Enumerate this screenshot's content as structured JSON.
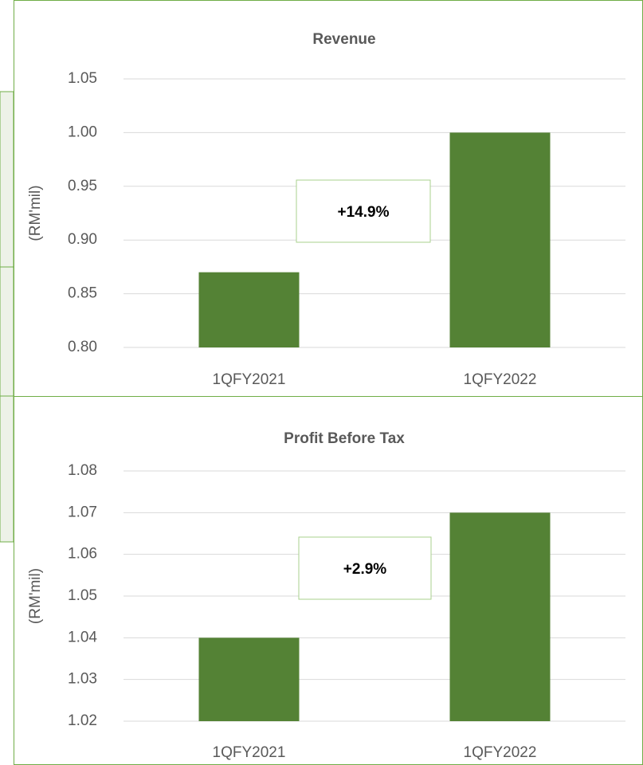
{
  "chart_data": [
    {
      "type": "bar",
      "title": "Revenue",
      "y_label": "(RM'mil)",
      "categories": [
        "1QFY2021",
        "1QFY2022"
      ],
      "values": [
        0.87,
        1.0
      ],
      "color": "#548235",
      "ylim": [
        0.8,
        1.05
      ],
      "yticks": [
        1.05,
        {
          "value": 1.0,
          "label": "1.00"
        },
        0.95,
        {
          "value": 0.9,
          "label": "0.90"
        },
        0.85,
        {
          "value": 0.8,
          "label": "0.80"
        }
      ],
      "grid": true,
      "annotation": "+14.9%"
    },
    {
      "type": "bar",
      "title": "Profit Before Tax",
      "y_label": "(RM'mil)",
      "categories": [
        "1QFY2021",
        "1QFY2022"
      ],
      "values": [
        1.04,
        1.07
      ],
      "color": "#548235",
      "ylim": [
        1.02,
        1.08
      ],
      "yticks": [
        1.08,
        1.07,
        1.06,
        1.05,
        1.04,
        1.03,
        1.02
      ],
      "grid": true,
      "annotation": "+2.9%"
    }
  ]
}
